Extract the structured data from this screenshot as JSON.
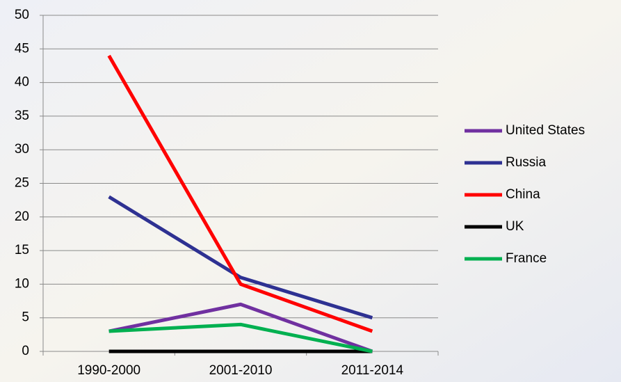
{
  "chart_data": {
    "type": "line",
    "categories": [
      "1990-2000",
      "2001-2010",
      "2011-2014"
    ],
    "series": [
      {
        "name": "United States",
        "color": "#7030a0",
        "values": [
          3,
          7,
          0
        ]
      },
      {
        "name": "Russia",
        "color": "#2e3192",
        "values": [
          23,
          11,
          5
        ]
      },
      {
        "name": "China",
        "color": "#ff0000",
        "values": [
          44,
          10,
          3
        ]
      },
      {
        "name": "UK",
        "color": "#000000",
        "values": [
          0,
          0,
          0
        ]
      },
      {
        "name": "France",
        "color": "#00b050",
        "values": [
          3,
          4,
          0
        ]
      }
    ],
    "ylim": [
      0,
      50
    ],
    "yticks": [
      0,
      5,
      10,
      15,
      20,
      25,
      30,
      35,
      40,
      45,
      50
    ],
    "grid": true,
    "legend": "right"
  }
}
